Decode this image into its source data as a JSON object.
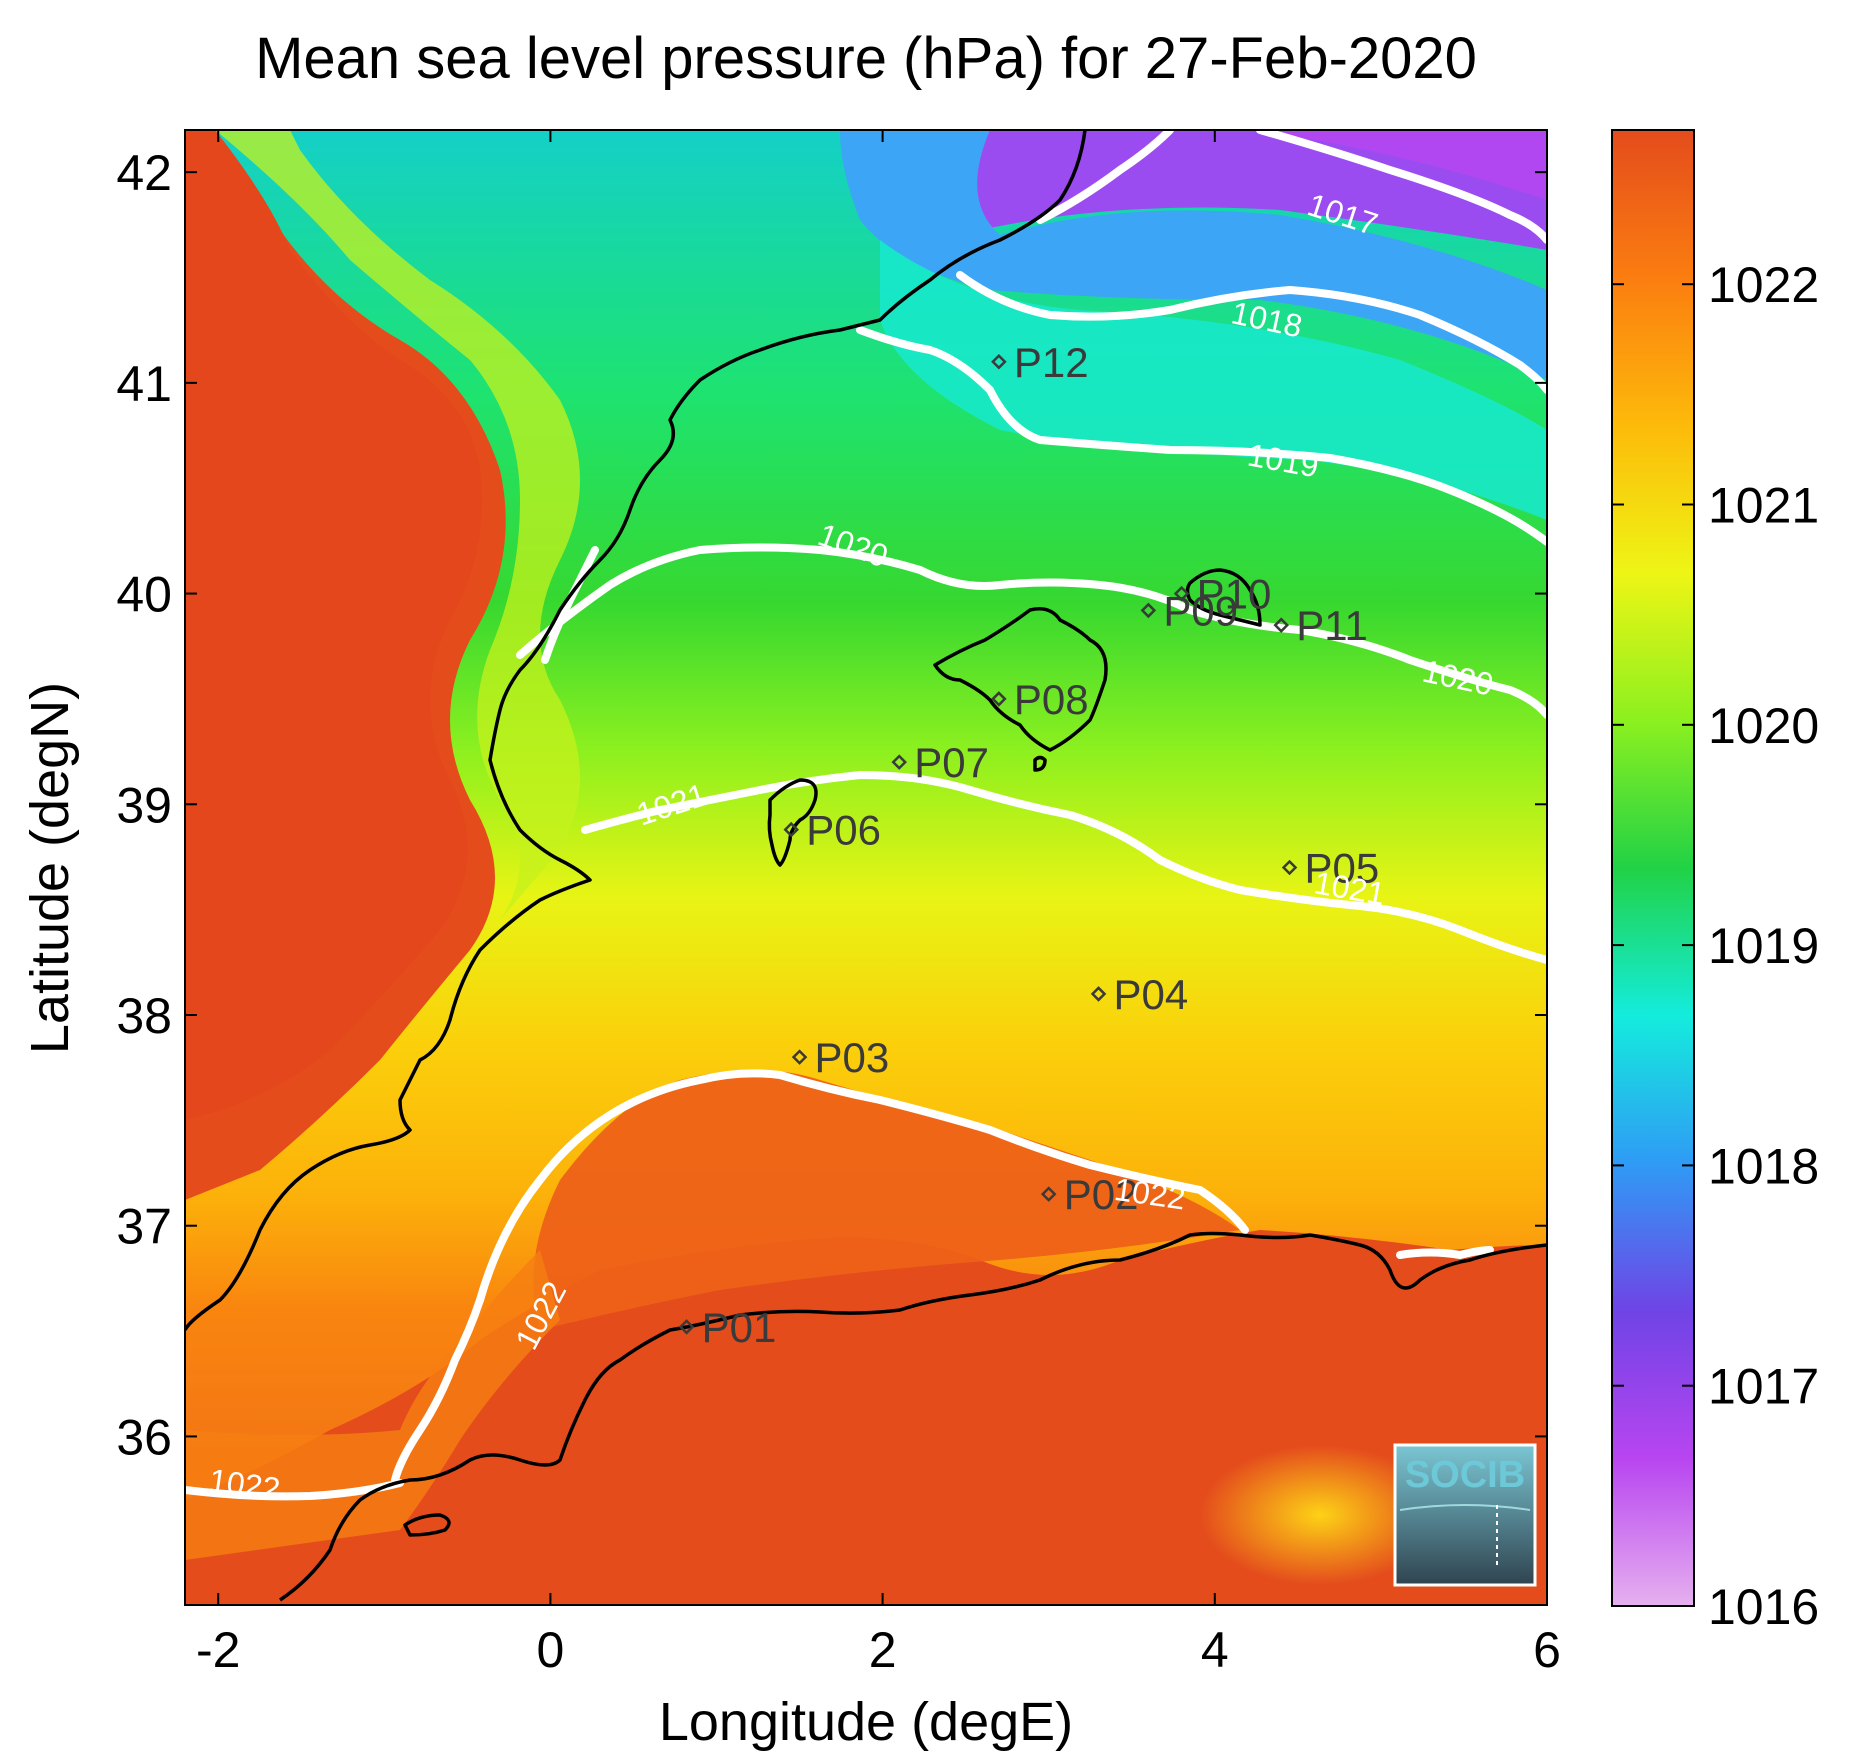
{
  "title": "Mean sea level pressure (hPa) for 27-Feb-2020",
  "xlabel": "Longitude (degE)",
  "ylabel": "Latitude (degN)",
  "map": {
    "lon_range": [
      -2.2,
      6.0
    ],
    "lat_range": [
      35.2,
      42.2
    ],
    "x_ticks": [
      -2,
      0,
      2,
      4,
      6
    ],
    "x_tick_labels": [
      "-2",
      "0",
      "2",
      "4",
      "6"
    ],
    "y_ticks": [
      36,
      37,
      38,
      39,
      40,
      41,
      42
    ],
    "y_tick_labels": [
      "36",
      "37",
      "38",
      "39",
      "40",
      "41",
      "42"
    ]
  },
  "colorbar": {
    "range": [
      1016,
      1022.7
    ],
    "ticks": [
      1016,
      1017,
      1018,
      1019,
      1020,
      1021,
      1022
    ],
    "tick_labels": [
      "1016",
      "1017",
      "1018",
      "1019",
      "1020",
      "1021",
      "1022"
    ],
    "colors": [
      "#e6b0ef",
      "#b845f0",
      "#6f44e6",
      "#2f9bf5",
      "#14ecdd",
      "#21d246",
      "#8cf01f",
      "#eef515",
      "#fdba0a",
      "#fb7d10",
      "#e44c1c"
    ]
  },
  "stations": [
    {
      "id": "P01",
      "lon": 0.82,
      "lat": 36.52
    },
    {
      "id": "P02",
      "lon": 3.0,
      "lat": 37.15
    },
    {
      "id": "P03",
      "lon": 1.5,
      "lat": 37.8
    },
    {
      "id": "P04",
      "lon": 3.3,
      "lat": 38.1
    },
    {
      "id": "P05",
      "lon": 4.45,
      "lat": 38.7
    },
    {
      "id": "P06",
      "lon": 1.45,
      "lat": 38.88
    },
    {
      "id": "P07",
      "lon": 2.1,
      "lat": 39.2
    },
    {
      "id": "P08",
      "lon": 2.7,
      "lat": 39.5
    },
    {
      "id": "P09",
      "lon": 3.6,
      "lat": 39.92
    },
    {
      "id": "P10",
      "lon": 3.8,
      "lat": 40.0
    },
    {
      "id": "P11",
      "lon": 4.4,
      "lat": 39.85
    },
    {
      "id": "P12",
      "lon": 2.7,
      "lat": 41.1
    }
  ],
  "contour_labels": [
    {
      "text": "1017",
      "lon": 4.75,
      "lat": 41.75,
      "angle": 18
    },
    {
      "text": "1018",
      "lon": 4.3,
      "lat": 41.25,
      "angle": 12
    },
    {
      "text": "1019",
      "lon": 4.4,
      "lat": 40.58,
      "angle": 10
    },
    {
      "text": "1020",
      "lon": 1.8,
      "lat": 40.18,
      "angle": 20
    },
    {
      "text": "1020",
      "lon": 5.45,
      "lat": 39.55,
      "angle": 12
    },
    {
      "text": "1021",
      "lon": 0.75,
      "lat": 38.95,
      "angle": -18
    },
    {
      "text": "1021",
      "lon": 4.8,
      "lat": 38.55,
      "angle": 10
    },
    {
      "text": "1022",
      "lon": 3.6,
      "lat": 37.1,
      "angle": 8
    },
    {
      "text": "1022",
      "lon": 0.0,
      "lat": 36.55,
      "angle": -62
    },
    {
      "text": "1022",
      "lon": -1.85,
      "lat": 35.72,
      "angle": 8
    }
  ],
  "logo": {
    "text": "SOCIB"
  }
}
